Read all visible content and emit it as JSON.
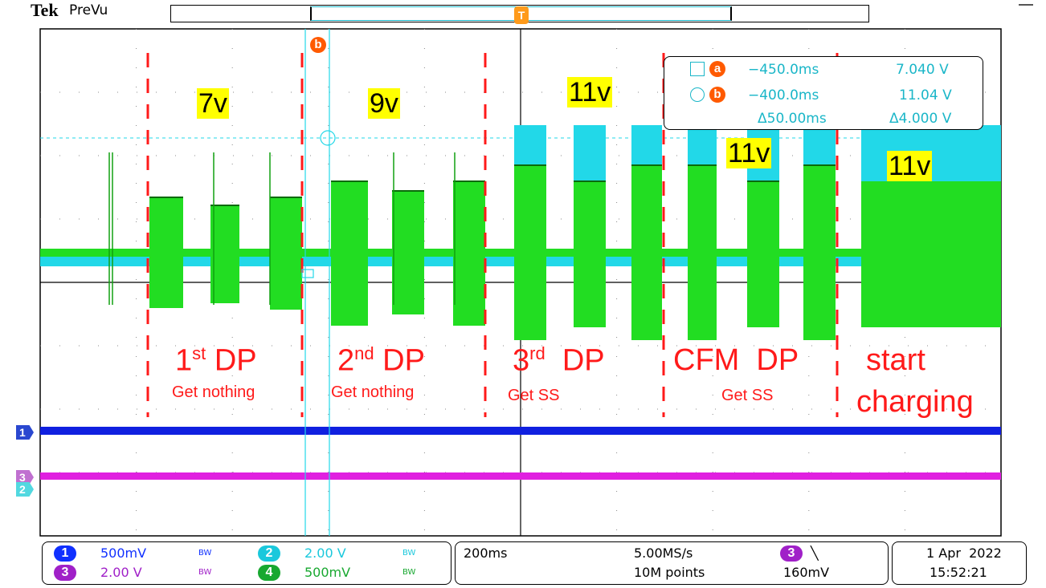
{
  "header": {
    "brand": "Tek",
    "mode": "PreVu"
  },
  "trigger_marker": "T",
  "cursor_b_label": "b",
  "annotations": {
    "voltages": [
      "7v",
      "9v",
      "11v",
      "11v",
      "11v"
    ],
    "dp1": {
      "main": "1",
      "sup": "st",
      "rest": " DP",
      "sub": "Get nothing"
    },
    "dp2": {
      "main": "2",
      "sup": "nd",
      "rest": " DP",
      "sub": "Get nothing"
    },
    "dp3": {
      "main": "3",
      "sup": "rd",
      "rest": "  DP",
      "sub": "Get SS"
    },
    "cfm": {
      "main": "CFM  DP",
      "sub": "Get SS"
    },
    "start": {
      "line1": "start",
      "line2": "charging"
    }
  },
  "cursor_readout": {
    "a": {
      "symbol": "a",
      "time": "−450.0ms",
      "value": "7.040 V"
    },
    "b": {
      "symbol": "b",
      "time": "−400.0ms",
      "value": "11.04 V"
    },
    "delta_time": "Δ50.00ms",
    "delta_value": "Δ4.000 V"
  },
  "channels": {
    "ch1": {
      "num": "1",
      "scale": "500mV",
      "bw": "BW",
      "color": "#0033ff"
    },
    "ch2": {
      "num": "2",
      "scale": "2.00 V",
      "bw": "BW",
      "color": "#1ac8dc"
    },
    "ch3": {
      "num": "3",
      "scale": "2.00 V",
      "bw": "BW",
      "color": "#a020c8"
    },
    "ch4": {
      "num": "4",
      "scale": "500mV",
      "bw": "BW",
      "color": "#18a830"
    }
  },
  "timebase": {
    "time_div": "200ms",
    "sample_rate": "5.00MS/s",
    "record_length": "10M points",
    "trigger_source": "3",
    "trigger_slope": "╲",
    "trigger_level": "160mV"
  },
  "datetime": {
    "date": "1 Apr  2022",
    "time": "15:52:21"
  },
  "colors": {
    "annotation_red": "#ff1a1a",
    "highlight_yellow": "#ffff00",
    "trace_green": "#22dd22",
    "trace_cyan": "#22d8e8",
    "trace_blue": "#1020e0",
    "trace_magenta": "#e020e0",
    "cursor_orange": "#ff5a00"
  }
}
